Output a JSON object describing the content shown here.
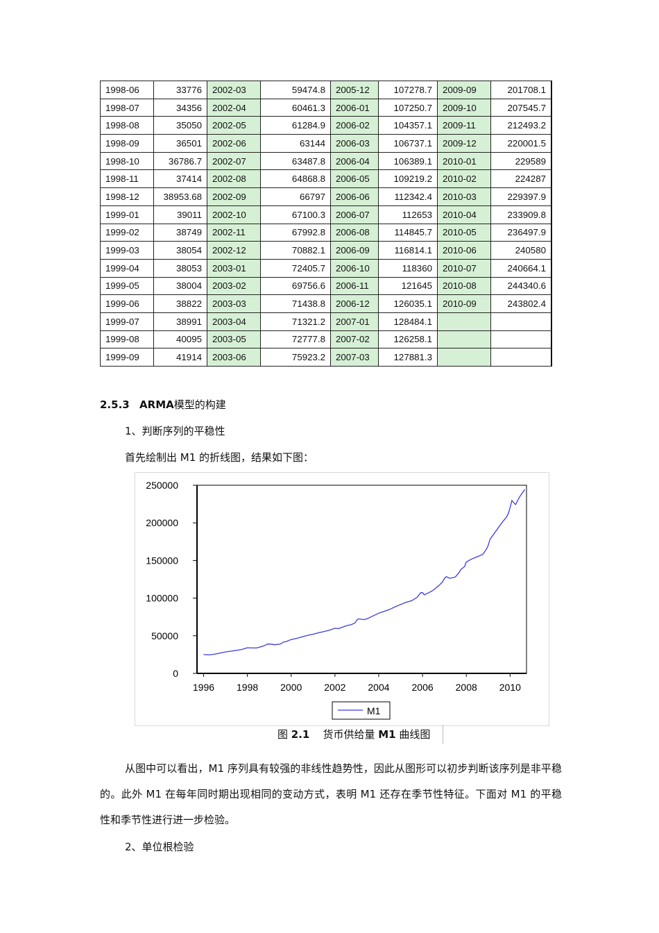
{
  "table": {
    "rows": [
      [
        [
          "1998-06",
          "33776"
        ],
        [
          "2002-03",
          "59474.8"
        ],
        [
          "2005-12",
          "107278.7"
        ],
        [
          "2009-09",
          "201708.1"
        ]
      ],
      [
        [
          "1998-07",
          "34356"
        ],
        [
          "2002-04",
          "60461.3"
        ],
        [
          "2006-01",
          "107250.7"
        ],
        [
          "2009-10",
          "207545.7"
        ]
      ],
      [
        [
          "1998-08",
          "35050"
        ],
        [
          "2002-05",
          "61284.9"
        ],
        [
          "2006-02",
          "104357.1"
        ],
        [
          "2009-11",
          "212493.2"
        ]
      ],
      [
        [
          "1998-09",
          "36501"
        ],
        [
          "2002-06",
          "63144"
        ],
        [
          "2006-03",
          "106737.1"
        ],
        [
          "2009-12",
          "220001.5"
        ]
      ],
      [
        [
          "1998-10",
          "36786.7"
        ],
        [
          "2002-07",
          "63487.8"
        ],
        [
          "2006-04",
          "106389.1"
        ],
        [
          "2010-01",
          "229589"
        ]
      ],
      [
        [
          "1998-11",
          "37414"
        ],
        [
          "2002-08",
          "64868.8"
        ],
        [
          "2006-05",
          "109219.2"
        ],
        [
          "2010-02",
          "224287"
        ]
      ],
      [
        [
          "1998-12",
          "38953.68"
        ],
        [
          "2002-09",
          "66797"
        ],
        [
          "2006-06",
          "112342.4"
        ],
        [
          "2010-03",
          "229397.9"
        ]
      ],
      [
        [
          "1999-01",
          "39011"
        ],
        [
          "2002-10",
          "67100.3"
        ],
        [
          "2006-07",
          "112653"
        ],
        [
          "2010-04",
          "233909.8"
        ]
      ],
      [
        [
          "1999-02",
          "38749"
        ],
        [
          "2002-11",
          "67992.8"
        ],
        [
          "2006-08",
          "114845.7"
        ],
        [
          "2010-05",
          "236497.9"
        ]
      ],
      [
        [
          "1999-03",
          "38054"
        ],
        [
          "2002-12",
          "70882.1"
        ],
        [
          "2006-09",
          "116814.1"
        ],
        [
          "2010-06",
          "240580"
        ]
      ],
      [
        [
          "1999-04",
          "38053"
        ],
        [
          "2003-01",
          "72405.7"
        ],
        [
          "2006-10",
          "118360"
        ],
        [
          "2010-07",
          "240664.1"
        ]
      ],
      [
        [
          "1999-05",
          "38004"
        ],
        [
          "2003-02",
          "69756.6"
        ],
        [
          "2006-11",
          "121645"
        ],
        [
          "2010-08",
          "244340.6"
        ]
      ],
      [
        [
          "1999-06",
          "38822"
        ],
        [
          "2003-03",
          "71438.8"
        ],
        [
          "2006-12",
          "126035.1"
        ],
        [
          "2010-09",
          "243802.4"
        ]
      ],
      [
        [
          "1999-07",
          "38991"
        ],
        [
          "2003-04",
          "71321.2"
        ],
        [
          "2007-01",
          "128484.1"
        ],
        [
          "",
          ""
        ]
      ],
      [
        [
          "1999-08",
          "40095"
        ],
        [
          "2003-05",
          "72777.8"
        ],
        [
          "2007-02",
          "126258.1"
        ],
        [
          "",
          ""
        ]
      ],
      [
        [
          "1999-09",
          "41914"
        ],
        [
          "2003-06",
          "75923.2"
        ],
        [
          "2007-03",
          "127881.3"
        ],
        [
          "",
          ""
        ]
      ]
    ]
  },
  "section": {
    "number": "2.5.3",
    "title_bold": "ARMA",
    "title_rest": "模型的构建"
  },
  "step1": "1、判断序列的平稳性",
  "intro": "首先绘制出 M1 的折线图，结果如下图：",
  "caption": {
    "prefix": "图",
    "number": "2.1",
    "text_a": "货币供给量",
    "text_b": "M1",
    "text_c": "曲线图"
  },
  "paragraph": "从图中可以看出，M1 序列具有较强的非线性趋势性，因此从图形可以初步判断该序列是非平稳的。此外 M1 在每年同时期出现相同的变动方式，表明 M1 还存在季节性特征。下面对 M1 的平稳性和季节性进行进一步检验。",
  "step2": "2、单位根检验",
  "colors": {
    "highlight": "#d6f0d5",
    "series": "#3a3ae0"
  },
  "chart_data": {
    "type": "line",
    "series": [
      {
        "name": "M1",
        "x": [
          1996.0,
          1996.25,
          1996.5,
          1996.75,
          1997.0,
          1997.25,
          1997.5,
          1997.75,
          1998.0,
          1998.25,
          1998.42,
          1998.5,
          1998.75,
          1998.92,
          1999.0,
          1999.25,
          1999.5,
          1999.67,
          1999.75,
          2000.0,
          2000.25,
          2000.5,
          2000.75,
          2001.0,
          2001.25,
          2001.5,
          2001.75,
          2002.0,
          2002.17,
          2002.5,
          2002.75,
          2002.92,
          2003.0,
          2003.08,
          2003.33,
          2003.5,
          2003.75,
          2004.0,
          2004.25,
          2004.5,
          2004.75,
          2005.0,
          2005.25,
          2005.5,
          2005.75,
          2005.92,
          2006.0,
          2006.08,
          2006.25,
          2006.42,
          2006.58,
          2006.75,
          2006.92,
          2007.0,
          2007.08,
          2007.25,
          2007.5,
          2007.67,
          2007.75,
          2007.92,
          2008.0,
          2008.25,
          2008.5,
          2008.75,
          2008.92,
          2009.0,
          2009.08,
          2009.25,
          2009.5,
          2009.67,
          2009.83,
          2009.92,
          2010.0,
          2010.08,
          2010.25,
          2010.42,
          2010.58,
          2010.67
        ],
        "y": [
          25000,
          24500,
          25500,
          27000,
          28500,
          29500,
          30500,
          31800,
          34000,
          33800,
          33776,
          34356,
          36501,
          38953,
          39011,
          38054,
          38822,
          41914,
          42000,
          45000,
          46500,
          48500,
          50500,
          52000,
          54000,
          55500,
          57500,
          60000,
          59474,
          63144,
          64868,
          67100,
          70882,
          72405,
          71438,
          73000,
          76500,
          80000,
          82500,
          85000,
          88500,
          91500,
          94500,
          96500,
          101000,
          107278,
          107250,
          104357,
          106737,
          109219,
          112653,
          116814,
          121645,
          126035,
          128484,
          126258,
          128000,
          134000,
          138000,
          142000,
          148000,
          152000,
          155000,
          158000,
          165000,
          170000,
          178000,
          185000,
          195000,
          201708,
          207545,
          212493,
          220001,
          229589,
          224287,
          233909,
          240580,
          244340
        ],
        "note": ""
      }
    ],
    "xlim": [
      1995.7,
      2010.75
    ],
    "ylim": [
      0,
      250000
    ],
    "xticks": [
      "1996",
      "1998",
      "2000",
      "2002",
      "2004",
      "2006",
      "2008",
      "2010"
    ],
    "yticks": [
      "0",
      "50000",
      "100000",
      "150000",
      "200000",
      "250000"
    ],
    "legend": "bottom-center",
    "grid": false,
    "title": "",
    "xlabel": "",
    "ylabel": ""
  }
}
